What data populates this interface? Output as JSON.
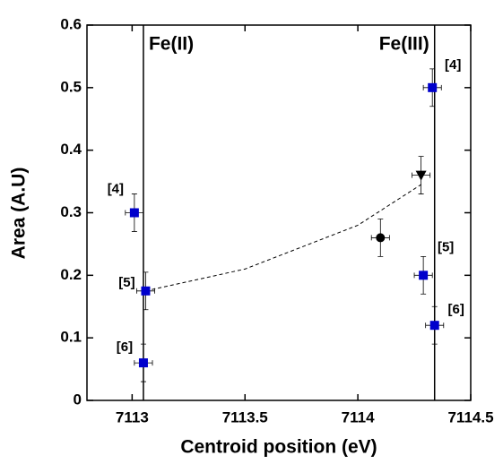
{
  "chart_data": {
    "type": "scatter",
    "xlabel": "Centroid position (eV)",
    "ylabel": "Area (A.U)",
    "xlim": [
      7112.8,
      7114.5
    ],
    "ylim": [
      0,
      0.6
    ],
    "xticks": [
      7113,
      7113.5,
      7114,
      7114.5
    ],
    "yticks": [
      0,
      0.1,
      0.2,
      0.3,
      0.4,
      0.5,
      0.6
    ],
    "vlines": [
      {
        "x": 7113.05,
        "label": "Fe(II)"
      },
      {
        "x": 7114.34,
        "label": "Fe(III)"
      }
    ],
    "series": [
      {
        "marker": "square",
        "color": "#0000cc",
        "x": [
          7113.01,
          7113.06,
          7113.05,
          7114.33,
          7114.29,
          7114.34
        ],
        "y": [
          0.3,
          0.175,
          0.06,
          0.5,
          0.2,
          0.12
        ],
        "xerr": [
          0.04,
          0.04,
          0.04,
          0.04,
          0.04,
          0.04
        ],
        "yerr": [
          0.03,
          0.03,
          0.03,
          0.03,
          0.03,
          0.03
        ],
        "labels": [
          "[4]",
          "[5]",
          "[6]",
          "[4]",
          "[5]",
          "[6]"
        ]
      },
      {
        "marker": "circle",
        "color": "#000000",
        "x": [
          7114.1
        ],
        "y": [
          0.26
        ],
        "xerr": [
          0.04
        ],
        "yerr": [
          0.03
        ]
      },
      {
        "marker": "triangle",
        "color": "#000000",
        "x": [
          7114.28
        ],
        "y": [
          0.36
        ],
        "xerr": [
          0.04
        ],
        "yerr": [
          0.03
        ]
      }
    ],
    "fit": {
      "style": "dashed",
      "color": "#000000",
      "x": [
        7113.06,
        7113.5,
        7114.0,
        7114.28
      ],
      "y": [
        0.175,
        0.21,
        0.28,
        0.345
      ]
    }
  }
}
